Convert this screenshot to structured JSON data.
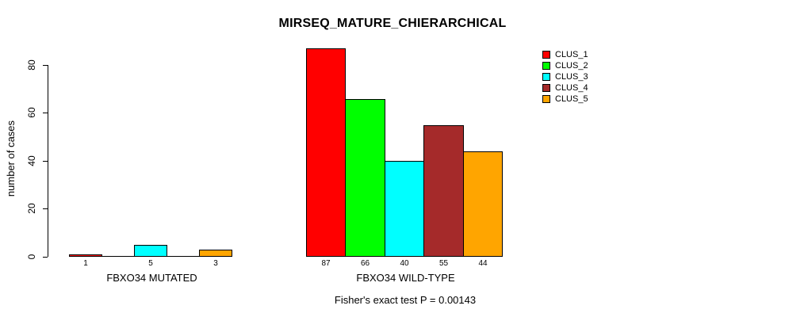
{
  "chart": {
    "title": "MIRSEQ_MATURE_CHIERARCHICAL",
    "ylabel": "number of cases",
    "subtitle": "Fisher's exact test P = 0.00143"
  },
  "chart_data": {
    "type": "bar",
    "title": "MIRSEQ_MATURE_CHIERARCHICAL",
    "xlabel": "",
    "ylabel": "number of cases",
    "ylim": [
      0,
      87
    ],
    "yticks": [
      0,
      20,
      40,
      60,
      80
    ],
    "grid": false,
    "legend_position": "top-right",
    "legend": [
      {
        "label": "CLUS_1",
        "color": "#FF0000"
      },
      {
        "label": "CLUS_2",
        "color": "#00FF00"
      },
      {
        "label": "CLUS_3",
        "color": "#00FFFF"
      },
      {
        "label": "CLUS_4",
        "color": "#A52A2A"
      },
      {
        "label": "CLUS_5",
        "color": "#FFA500"
      }
    ],
    "categories": [
      "CLUS_1",
      "CLUS_2",
      "CLUS_3",
      "CLUS_4",
      "CLUS_5"
    ],
    "groups": [
      {
        "label": "FBXO34 MUTATED",
        "values": [
          1,
          0,
          5,
          0,
          3
        ],
        "bar_labels": [
          "1",
          "",
          "5",
          "",
          "3"
        ],
        "colors": [
          "#FF0000",
          "#00FF00",
          "#00FFFF",
          "#A52A2A",
          "#FFA500"
        ]
      },
      {
        "label": "FBXO34 WILD-TYPE",
        "values": [
          87,
          66,
          40,
          55,
          44
        ],
        "bar_labels": [
          "87",
          "66",
          "40",
          "55",
          "44"
        ],
        "colors": [
          "#FF0000",
          "#00FF00",
          "#00FFFF",
          "#A52A2A",
          "#FFA500"
        ]
      }
    ],
    "annotation": "Fisher's exact test P = 0.00143"
  }
}
